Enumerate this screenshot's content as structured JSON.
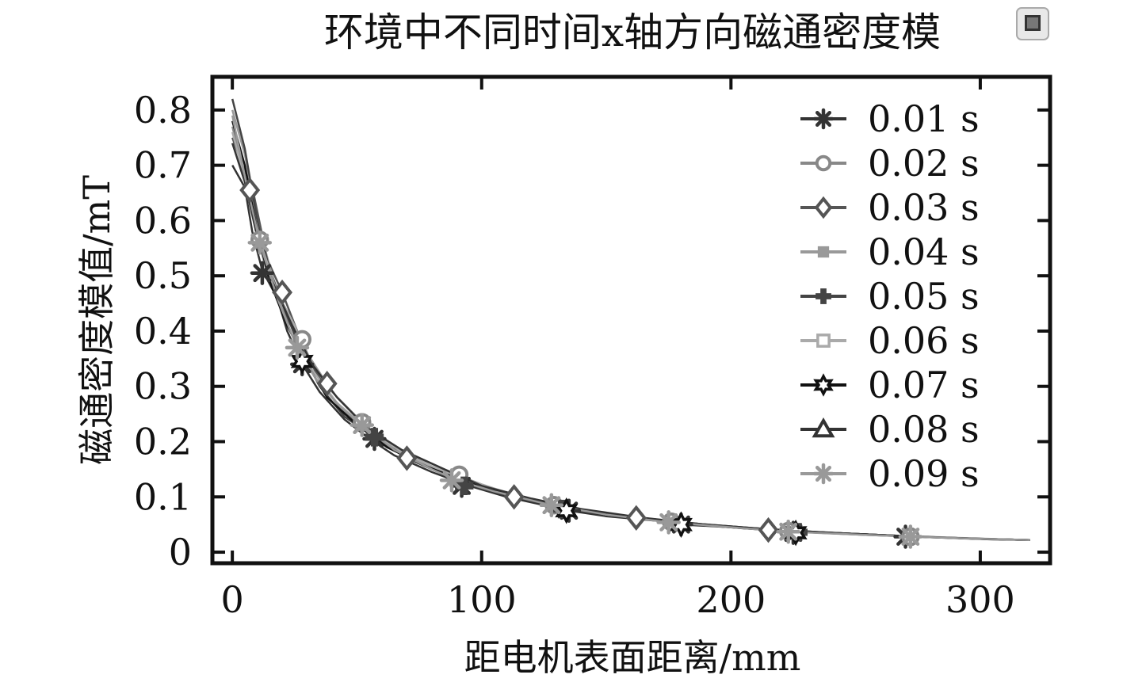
{
  "chart_data": {
    "type": "line",
    "title": "环境中不同时间x轴方向磁通密度模",
    "xlabel": "距电机表面距离/mm",
    "ylabel": "磁通密度模值/mT",
    "xlim": [
      -8,
      328
    ],
    "ylim": [
      -0.02,
      0.86
    ],
    "xticks": [
      0,
      100,
      200,
      300
    ],
    "yticks": [
      0,
      0.1,
      0.2,
      0.3,
      0.4,
      0.5,
      0.6,
      0.7,
      0.8
    ],
    "xtick_labels": [
      "0",
      "100",
      "200",
      "300"
    ],
    "ytick_labels": [
      "0",
      "0.1",
      "0.2",
      "0.3",
      "0.4",
      "0.5",
      "0.6",
      "0.7",
      "0.8"
    ],
    "grid": false,
    "legend_position": "top-right",
    "series": [
      {
        "name": "0.01 s",
        "color": "#333333",
        "marker": "asterisk",
        "x": [
          0,
          5,
          8,
          12,
          18,
          22,
          28,
          35,
          45,
          55,
          65,
          80,
          95,
          110,
          125,
          135,
          150,
          175,
          180,
          200,
          225,
          250,
          275,
          300,
          320
        ],
        "y": [
          0.7,
          0.66,
          0.58,
          0.51,
          0.46,
          0.4,
          0.34,
          0.29,
          0.24,
          0.205,
          0.175,
          0.145,
          0.12,
          0.1,
          0.085,
          0.075,
          0.065,
          0.055,
          0.05,
          0.045,
          0.038,
          0.033,
          0.028,
          0.024,
          0.022
        ],
        "marker_x": [
          12,
          28,
          57,
          92,
          135,
          180,
          225,
          270
        ],
        "marker_y": [
          0.505,
          0.34,
          0.205,
          0.12,
          0.075,
          0.05,
          0.035,
          0.028
        ]
      },
      {
        "name": "0.02 s",
        "color": "#888888",
        "marker": "circle",
        "x": [
          0,
          5,
          10,
          15,
          22,
          28,
          35,
          45,
          60,
          75,
          90,
          110,
          130,
          150,
          175,
          200,
          225,
          250,
          275,
          300,
          320
        ],
        "y": [
          0.77,
          0.68,
          0.57,
          0.49,
          0.42,
          0.38,
          0.31,
          0.25,
          0.2,
          0.17,
          0.14,
          0.105,
          0.085,
          0.068,
          0.055,
          0.045,
          0.038,
          0.033,
          0.028,
          0.024,
          0.022
        ],
        "marker_x": [
          11,
          28,
          52,
          91,
          129,
          176,
          223,
          272
        ],
        "marker_y": [
          0.565,
          0.385,
          0.235,
          0.14,
          0.085,
          0.055,
          0.038,
          0.028
        ]
      },
      {
        "name": "0.03 s",
        "color": "#555555",
        "marker": "diamond",
        "x": [
          0,
          4,
          8,
          14,
          20,
          26,
          33,
          40,
          50,
          62,
          75,
          90,
          105,
          120,
          140,
          160,
          185,
          215,
          245,
          275,
          300,
          320
        ],
        "y": [
          0.75,
          0.7,
          0.66,
          0.53,
          0.47,
          0.4,
          0.33,
          0.28,
          0.23,
          0.195,
          0.165,
          0.135,
          0.11,
          0.095,
          0.075,
          0.062,
          0.05,
          0.04,
          0.034,
          0.028,
          0.024,
          0.022
        ],
        "marker_x": [
          7,
          20,
          38,
          70,
          113,
          162,
          215
        ],
        "marker_y": [
          0.655,
          0.47,
          0.305,
          0.17,
          0.1,
          0.062,
          0.04
        ]
      },
      {
        "name": "0.04 s",
        "color": "#999999",
        "marker": "square-filled",
        "x": [
          0,
          5,
          10,
          16,
          22,
          30,
          40,
          52,
          65,
          80,
          95,
          112,
          130,
          150,
          175,
          200,
          225,
          250,
          275,
          300,
          320
        ],
        "y": [
          0.8,
          0.72,
          0.6,
          0.5,
          0.43,
          0.36,
          0.29,
          0.235,
          0.19,
          0.155,
          0.13,
          0.105,
          0.085,
          0.068,
          0.055,
          0.045,
          0.038,
          0.033,
          0.028,
          0.024,
          0.022
        ],
        "marker_x": [],
        "marker_y": []
      },
      {
        "name": "0.05 s",
        "color": "#444444",
        "marker": "plus-filled",
        "x": [
          0,
          5,
          10,
          15,
          20,
          27,
          35,
          45,
          58,
          70,
          85,
          100,
          118,
          135,
          155,
          180,
          205,
          230,
          255,
          280,
          305,
          320
        ],
        "y": [
          0.82,
          0.73,
          0.6,
          0.51,
          0.45,
          0.37,
          0.3,
          0.245,
          0.205,
          0.17,
          0.14,
          0.115,
          0.095,
          0.078,
          0.065,
          0.052,
          0.043,
          0.036,
          0.031,
          0.027,
          0.023,
          0.022
        ],
        "marker_x": [
          57,
          93,
          132,
          227
        ],
        "marker_y": [
          0.208,
          0.12,
          0.078,
          0.036
        ]
      },
      {
        "name": "0.06 s",
        "color": "#aaaaaa",
        "marker": "square-open",
        "x": [
          0,
          6,
          12,
          18,
          25,
          32,
          42,
          55,
          70,
          88,
          105,
          125,
          145,
          170,
          200,
          230,
          260,
          290,
          320
        ],
        "y": [
          0.76,
          0.66,
          0.55,
          0.47,
          0.41,
          0.33,
          0.27,
          0.22,
          0.175,
          0.14,
          0.115,
          0.09,
          0.073,
          0.058,
          0.046,
          0.037,
          0.031,
          0.026,
          0.022
        ],
        "marker_x": [],
        "marker_y": []
      },
      {
        "name": "0.07 s",
        "color": "#111111",
        "marker": "star-open",
        "x": [
          0,
          5,
          10,
          15,
          22,
          30,
          38,
          50,
          62,
          78,
          95,
          115,
          135,
          160,
          185,
          210,
          240,
          270,
          300,
          320
        ],
        "y": [
          0.78,
          0.7,
          0.58,
          0.49,
          0.41,
          0.34,
          0.28,
          0.23,
          0.19,
          0.155,
          0.125,
          0.1,
          0.08,
          0.064,
          0.052,
          0.043,
          0.035,
          0.029,
          0.024,
          0.022
        ],
        "marker_x": [
          28,
          134,
          180,
          226
        ],
        "marker_y": [
          0.345,
          0.075,
          0.05,
          0.035
        ]
      },
      {
        "name": "0.08 s",
        "color": "#333333",
        "marker": "triangle-open",
        "x": [
          0,
          5,
          10,
          16,
          24,
          32,
          42,
          54,
          68,
          85,
          100,
          120,
          140,
          165,
          190,
          220,
          250,
          280,
          310,
          320
        ],
        "y": [
          0.74,
          0.67,
          0.57,
          0.49,
          0.41,
          0.34,
          0.28,
          0.225,
          0.185,
          0.15,
          0.12,
          0.097,
          0.078,
          0.062,
          0.05,
          0.04,
          0.033,
          0.027,
          0.023,
          0.022
        ],
        "marker_x": [],
        "marker_y": []
      },
      {
        "name": "0.09 s",
        "color": "#999999",
        "marker": "asterisk",
        "x": [
          0,
          5,
          11,
          18,
          26,
          34,
          44,
          52,
          65,
          80,
          90,
          105,
          128,
          150,
          175,
          200,
          223,
          250,
          272,
          300,
          320
        ],
        "y": [
          0.79,
          0.68,
          0.56,
          0.46,
          0.37,
          0.31,
          0.26,
          0.23,
          0.185,
          0.15,
          0.13,
          0.11,
          0.085,
          0.068,
          0.054,
          0.045,
          0.037,
          0.032,
          0.028,
          0.024,
          0.022
        ],
        "marker_x": [
          11,
          26,
          52,
          88,
          128,
          175,
          223,
          272
        ],
        "marker_y": [
          0.56,
          0.37,
          0.23,
          0.13,
          0.085,
          0.054,
          0.037,
          0.028
        ]
      }
    ]
  },
  "icons": {
    "corner_icon": "window-restore-icon"
  }
}
